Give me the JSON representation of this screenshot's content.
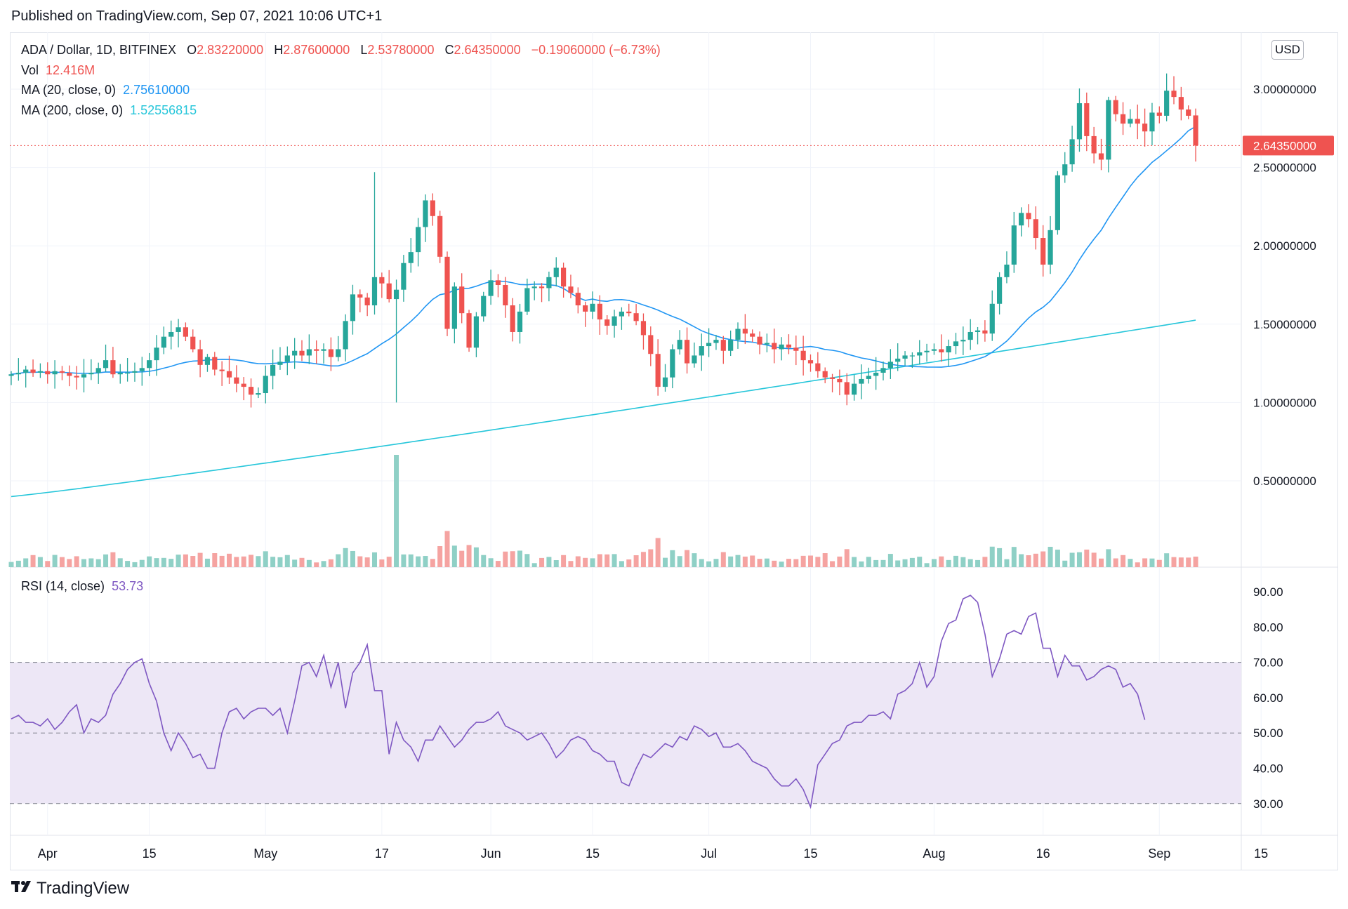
{
  "published": "Published on TradingView.com, Sep 07, 2021 10:06 UTC+1",
  "footer": {
    "brand": "TradingView",
    "logo_icon": "tradingview-logo-icon"
  },
  "currency": "USD",
  "colors": {
    "up": "#26a69a",
    "down": "#ef5350",
    "ma20": "#2196f3",
    "ma200": "#26c6da",
    "rsi": "#7e57c2",
    "rsi_band": "#ede7f6"
  },
  "legend": {
    "symbol": "ADA / Dollar, 1D, BITFINEX",
    "o_label": "O",
    "o_value": "2.83220000",
    "h_label": "H",
    "h_value": "2.87600000",
    "l_label": "L",
    "l_value": "2.53780000",
    "c_label": "C",
    "c_value": "2.64350000",
    "change": "−0.19060000 (−6.73%)",
    "vol_label": "Vol",
    "vol_value": "12.416M",
    "ma20_label": "MA (20, close, 0)",
    "ma20_value": "2.75610000",
    "ma200_label": "MA (200, close, 0)",
    "ma200_value": "1.52556815",
    "rsi_label": "RSI (14, close)",
    "rsi_value": "53.73"
  },
  "last_price_label": "2.64350000",
  "chart_data": [
    {
      "type": "candlestick",
      "title": "ADA / Dollar, 1D, BITFINEX",
      "y_ticks": [
        "0.50000000",
        "1.00000000",
        "1.50000000",
        "2.00000000",
        "2.50000000",
        "3.00000000"
      ],
      "ylim": [
        0.2,
        3.3
      ],
      "x_tick_labels": [
        {
          "label": "Apr",
          "date": "2021-04-01"
        },
        {
          "label": "15",
          "date": "2021-04-15"
        },
        {
          "label": "May",
          "date": "2021-05-01"
        },
        {
          "label": "17",
          "date": "2021-05-17"
        },
        {
          "label": "Jun",
          "date": "2021-06-01"
        },
        {
          "label": "15",
          "date": "2021-06-15"
        },
        {
          "label": "Jul",
          "date": "2021-07-01"
        },
        {
          "label": "15",
          "date": "2021-07-15"
        },
        {
          "label": "Aug",
          "date": "2021-08-01"
        },
        {
          "label": "16",
          "date": "2021-08-16"
        },
        {
          "label": "Sep",
          "date": "2021-09-01"
        },
        {
          "label": "15",
          "date": "2021-09-15"
        }
      ],
      "start_date": "2021-03-27",
      "close": [
        1.18,
        1.19,
        1.21,
        1.19,
        1.2,
        1.18,
        1.2,
        1.19,
        1.17,
        1.16,
        1.18,
        1.19,
        1.22,
        1.27,
        1.18,
        1.19,
        1.19,
        1.2,
        1.22,
        1.27,
        1.35,
        1.42,
        1.45,
        1.48,
        1.42,
        1.34,
        1.24,
        1.29,
        1.21,
        1.2,
        1.16,
        1.12,
        1.1,
        1.05,
        1.06,
        1.17,
        1.24,
        1.26,
        1.3,
        1.33,
        1.3,
        1.34,
        1.33,
        1.34,
        1.29,
        1.34,
        1.52,
        1.69,
        1.67,
        1.62,
        1.8,
        1.76,
        1.66,
        1.72,
        1.89,
        1.96,
        2.12,
        2.29,
        2.19,
        1.93,
        1.47,
        1.74,
        1.57,
        1.35,
        1.55,
        1.68,
        1.78,
        1.75,
        1.62,
        1.45,
        1.58,
        1.73,
        1.74,
        1.73,
        1.8,
        1.86,
        1.74,
        1.7,
        1.62,
        1.58,
        1.63,
        1.53,
        1.49,
        1.55,
        1.58,
        1.57,
        1.52,
        1.43,
        1.31,
        1.1,
        1.16,
        1.34,
        1.4,
        1.25,
        1.3,
        1.36,
        1.38,
        1.4,
        1.33,
        1.4,
        1.47,
        1.44,
        1.42,
        1.37,
        1.38,
        1.34,
        1.37,
        1.35,
        1.33,
        1.27,
        1.25,
        1.2,
        1.16,
        1.15,
        1.13,
        1.05,
        1.12,
        1.15,
        1.17,
        1.19,
        1.22,
        1.26,
        1.28,
        1.3,
        1.3,
        1.32,
        1.33,
        1.34,
        1.32,
        1.36,
        1.39,
        1.4,
        1.45,
        1.46,
        1.44,
        1.63,
        1.8,
        1.88,
        2.13,
        2.21,
        2.17,
        2.05,
        1.88,
        2.1,
        2.45,
        2.52,
        2.68,
        2.91,
        2.7,
        2.59,
        2.55,
        2.93,
        2.84,
        2.78,
        2.81,
        2.78,
        2.73,
        2.85,
        2.83,
        2.99,
        2.95,
        2.87,
        2.83,
        2.64
      ],
      "ma200_first": 0.4,
      "ma200_last": 1.52556815
    },
    {
      "type": "bar",
      "title": "Vol",
      "last_value": "12.416M"
    },
    {
      "type": "line",
      "title": "RSI (14, close)",
      "y_ticks": [
        "30.00",
        "40.00",
        "50.00",
        "60.00",
        "70.00",
        "80.00",
        "90.00"
      ],
      "ylim": [
        23,
        93
      ],
      "bands": [
        30,
        50,
        70
      ],
      "values": [
        54,
        55,
        53,
        53,
        52,
        54,
        51,
        53,
        56,
        58,
        50,
        54,
        53,
        55,
        61,
        64,
        68,
        70,
        71,
        64,
        59,
        50,
        45,
        50,
        47,
        43,
        44,
        40,
        40,
        50,
        56,
        57,
        54,
        56,
        57,
        57,
        55,
        57,
        50,
        59,
        69,
        70,
        66,
        72,
        63,
        70,
        57,
        67,
        70,
        75,
        62,
        62,
        44,
        53,
        48,
        46,
        42,
        48,
        48,
        52,
        49,
        46,
        48,
        51,
        53,
        53,
        54,
        56,
        52,
        51,
        50,
        48,
        49,
        50,
        47,
        43,
        45,
        48,
        49,
        48,
        45,
        44,
        42,
        42,
        36,
        35,
        40,
        44,
        43,
        45,
        47,
        46,
        49,
        48,
        52,
        51,
        49,
        50,
        46,
        46,
        47,
        45,
        42,
        41,
        40,
        37,
        35,
        35,
        37,
        34,
        29,
        41,
        44,
        47,
        48,
        52,
        53,
        53,
        55,
        55,
        56,
        54,
        61,
        62,
        64,
        70,
        63,
        66,
        76,
        81,
        82,
        88,
        89,
        87,
        78,
        66,
        71,
        78,
        79,
        78,
        83,
        84,
        74,
        74,
        66,
        72,
        69,
        69,
        65,
        66,
        68,
        69,
        68,
        63,
        64,
        61,
        53.73
      ]
    }
  ]
}
